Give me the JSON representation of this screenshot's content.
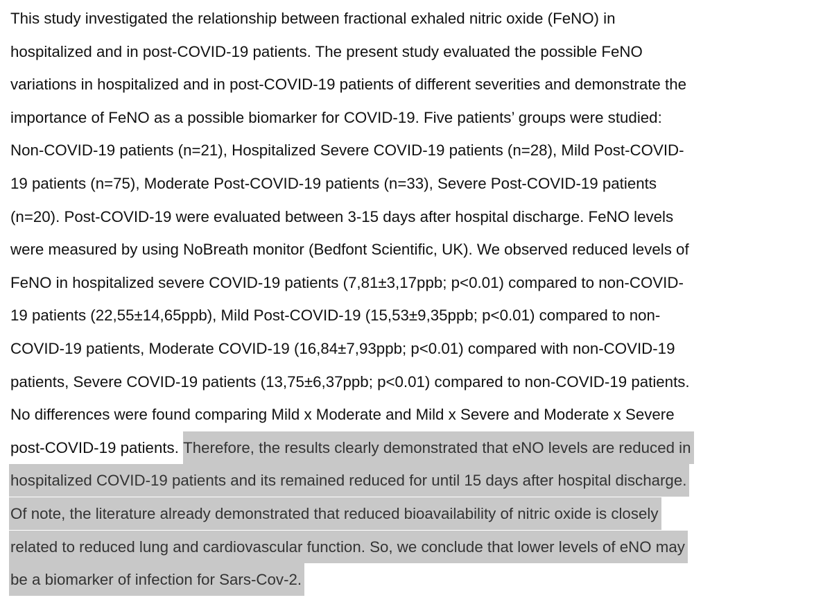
{
  "document": {
    "highlight_color": "#c8c8c8",
    "lines": [
      {
        "plain": "This study investigated the relationship between fractional exhaled nitric oxide (FeNO) in",
        "highlighted": ""
      },
      {
        "plain": "hospitalized and in post-COVID-19 patients. The present study evaluated the possible FeNO",
        "highlighted": ""
      },
      {
        "plain": "variations in hospitalized and in post-COVID-19 patients of different severities and demonstrate the",
        "highlighted": ""
      },
      {
        "plain": "importance of FeNO as a possible biomarker for COVID-19. Five patients’ groups were studied:",
        "highlighted": ""
      },
      {
        "plain": "Non-COVID-19 patients (n=21), Hospitalized Severe COVID-19 patients (n=28), Mild Post-COVID-",
        "highlighted": ""
      },
      {
        "plain": "19 patients (n=75), Moderate Post-COVID-19 patients (n=33), Severe Post-COVID-19 patients",
        "highlighted": ""
      },
      {
        "plain": "(n=20). Post-COVID-19 were evaluated between 3-15 days after hospital discharge. FeNO levels",
        "highlighted": ""
      },
      {
        "plain": "were measured by using NoBreath monitor (Bedfont Scientific, UK). We observed reduced levels of",
        "highlighted": ""
      },
      {
        "plain": "FeNO in hospitalized severe COVID-19 patients (7,81±3,17ppb; p<0.01) compared to non-COVID-",
        "highlighted": ""
      },
      {
        "plain": "19 patients (22,55±14,65ppb), Mild Post-COVID-19 (15,53±9,35ppb; p<0.01) compared to non-",
        "highlighted": ""
      },
      {
        "plain": "COVID-19 patients, Moderate COVID-19 (16,84±7,93ppb; p<0.01) compared with non-COVID-19",
        "highlighted": ""
      },
      {
        "plain": "patients, Severe COVID-19 patients (13,75±6,37ppb; p<0.01) compared to non-COVID-19 patients.",
        "highlighted": ""
      },
      {
        "plain": "No differences were found comparing Mild x Moderate and Mild x Severe and Moderate x Severe",
        "highlighted": ""
      },
      {
        "plain": "post-COVID-19 patients. ",
        "highlighted": "Therefore, the results clearly demonstrated that eNO levels are reduced in"
      },
      {
        "plain": "",
        "highlighted": "hospitalized COVID-19 patients and its remained reduced for until 15 days after hospital discharge."
      },
      {
        "plain": "",
        "highlighted": "Of note, the literature already demonstrated that reduced bioavailability of nitric oxide is closely"
      },
      {
        "plain": "",
        "highlighted": "related to reduced lung and cardiovascular function. So, we conclude that lower levels of eNO may"
      },
      {
        "plain": "",
        "highlighted": "be a biomarker of infection for Sars-Cov-2."
      }
    ]
  }
}
